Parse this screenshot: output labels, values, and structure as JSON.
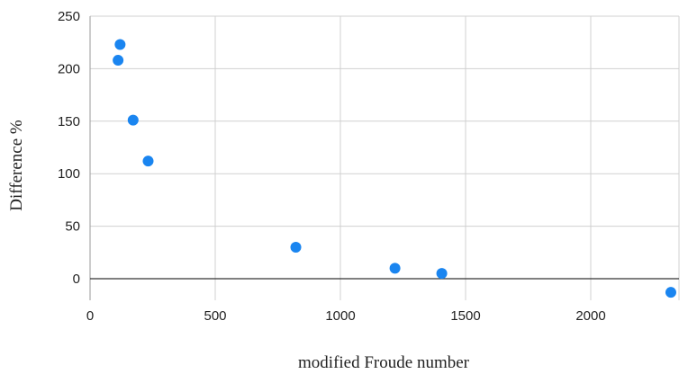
{
  "chart_data": {
    "type": "scatter",
    "title": "",
    "xlabel": "modified Froude number",
    "ylabel": "Difference %",
    "xlim": [
      0,
      2350
    ],
    "ylim": [
      -20,
      250
    ],
    "x_ticks": [
      "0",
      "500",
      "1000",
      "1500",
      "2000"
    ],
    "y_ticks": [
      "0",
      "50",
      "100",
      "150",
      "200",
      "250"
    ],
    "grid": true,
    "legend": "none",
    "series": [
      {
        "color": "#1a85f0",
        "points": [
          {
            "x": 120,
            "y": 223
          },
          {
            "x": 112,
            "y": 208
          },
          {
            "x": 172,
            "y": 151
          },
          {
            "x": 232,
            "y": 112
          },
          {
            "x": 822,
            "y": 30
          },
          {
            "x": 1218,
            "y": 10
          },
          {
            "x": 1405,
            "y": 5
          },
          {
            "x": 2320,
            "y": -13
          }
        ]
      }
    ]
  }
}
